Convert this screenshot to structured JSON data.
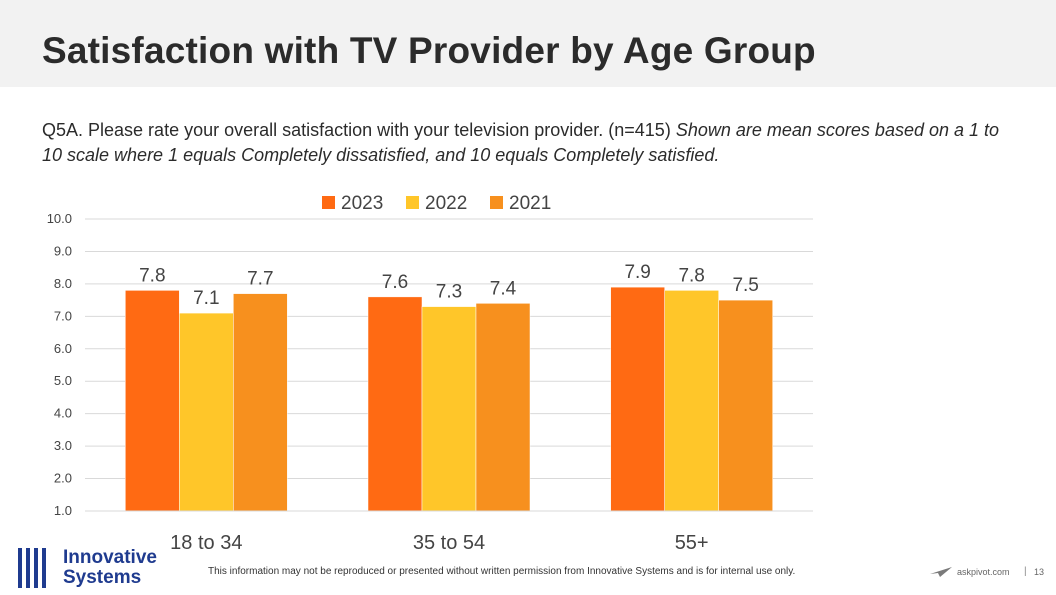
{
  "title": "Satisfaction with TV Provider by Age Group",
  "question": {
    "text": "Q5A. Please rate your overall satisfaction with your television provider. (n=415) ",
    "note": "Shown are mean scores based on a 1 to 10 scale where 1 equals Completely dissatisfied, and 10 equals Completely satisfied."
  },
  "chart_data": {
    "type": "bar",
    "categories": [
      "18 to 34",
      "35 to 54",
      "55+"
    ],
    "series": [
      {
        "name": "2023",
        "color": "#ff6a13",
        "values": [
          7.8,
          7.6,
          7.9
        ]
      },
      {
        "name": "2022",
        "color": "#ffc629",
        "values": [
          7.1,
          7.3,
          7.8
        ]
      },
      {
        "name": "2021",
        "color": "#f7901e",
        "values": [
          7.7,
          7.4,
          7.5
        ]
      }
    ],
    "ylim": [
      1.0,
      10.0
    ],
    "yticks": [
      "1.0",
      "2.0",
      "3.0",
      "4.0",
      "5.0",
      "6.0",
      "7.0",
      "8.0",
      "9.0",
      "10.0"
    ],
    "legend_position": "top-center",
    "grid": true
  },
  "footer": {
    "logo_line1": "Innovative",
    "logo_line2": "Systems",
    "disclaimer": "This information may not be reproduced or presented without written permission from Innovative Systems and is for internal use only.",
    "site": "askpivot.com",
    "page": "13"
  }
}
